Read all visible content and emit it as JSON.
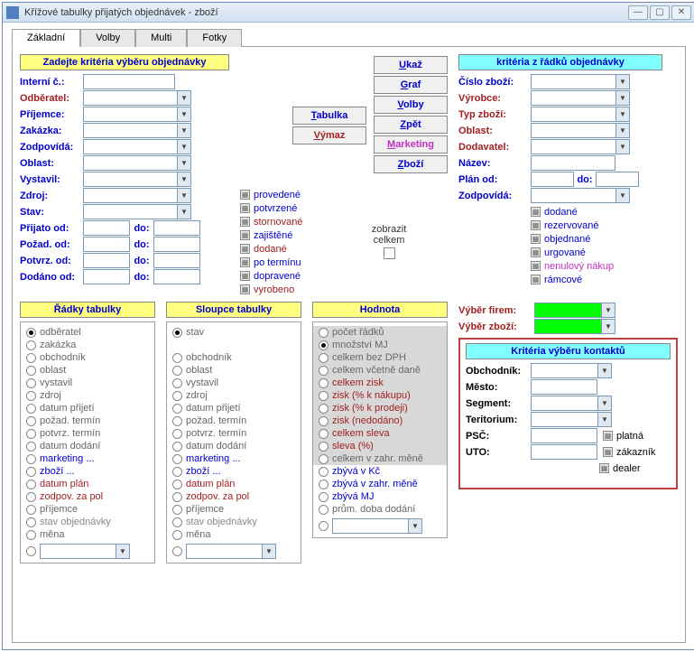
{
  "window": {
    "title": "Křížové tabulky přijatých objednávek - zboží"
  },
  "tabs": [
    "Základní",
    "Volby",
    "Multi",
    "Fotky"
  ],
  "hdr": {
    "criteria_obj": "Zadejte kritéria výběru objednávky",
    "criteria_row": "kritéria z řádků objednávky",
    "rows": "Řádky tabulky",
    "cols": "Sloupce tabulky",
    "val": "Hodnota",
    "kontakt": "Kritéria výběru kontaktů"
  },
  "left_fields": [
    {
      "l": "Interní č.:",
      "t": "inp"
    },
    {
      "l": "Odběratel:",
      "t": "cmb",
      "red": true
    },
    {
      "l": "Příjemce:",
      "t": "cmb"
    },
    {
      "l": "Zakázka:",
      "t": "cmb"
    },
    {
      "l": "Zodpovídá:",
      "t": "cmb"
    },
    {
      "l": "Oblast:",
      "t": "cmb"
    },
    {
      "l": "Vystavil:",
      "t": "cmb"
    },
    {
      "l": "Zdroj:",
      "t": "cmb"
    },
    {
      "l": "Stav:",
      "t": "cmb"
    }
  ],
  "left_dates": [
    {
      "l": "Přijato od:",
      "m": "do:"
    },
    {
      "l": "Požad. od:",
      "m": "do:"
    },
    {
      "l": "Potvrz. od:",
      "m": "do:"
    },
    {
      "l": "Dodáno od:",
      "m": "do:"
    }
  ],
  "buttons_col1": [
    {
      "u": "T",
      "r": "abulka"
    },
    {
      "u": "V",
      "r": "ýmaz",
      "cls": "btn-red"
    }
  ],
  "buttons_col2": [
    {
      "u": "U",
      "r": "kaž"
    },
    {
      "u": "G",
      "r": "raf"
    },
    {
      "u": "V",
      "r": "olby"
    },
    {
      "u": "Z",
      "r": "pět"
    },
    {
      "u": "M",
      "r": "arketing",
      "cls": "btn-mag"
    },
    {
      "u": "Z",
      "r": "boží"
    }
  ],
  "mid_checks": [
    {
      "l": "provedené",
      "c": "blue"
    },
    {
      "l": "potvrzené",
      "c": "blue"
    },
    {
      "l": "stornované",
      "c": "red"
    },
    {
      "l": "zajištěné",
      "c": "blue"
    },
    {
      "l": "dodané",
      "c": "red"
    },
    {
      "l": "po termínu",
      "c": "blue"
    },
    {
      "l": "dopravené",
      "c": "blue"
    },
    {
      "l": "vyrobeno",
      "c": "red"
    }
  ],
  "zobrazit": {
    "l1": "zobrazit",
    "l2": "celkem"
  },
  "right_fields": [
    {
      "l": "Číslo zboží:",
      "t": "cmb"
    },
    {
      "l": "Výrobce:",
      "t": "cmb",
      "red": true
    },
    {
      "l": "Typ zboží:",
      "t": "cmb",
      "red": true
    },
    {
      "l": "Oblast:",
      "t": "cmb",
      "red": true
    },
    {
      "l": "Dodavatel:",
      "t": "cmb",
      "red": true
    },
    {
      "l": "Název:",
      "t": "inp"
    },
    {
      "l": "Plán od:",
      "t": "date",
      "m": "do:"
    },
    {
      "l": "Zodpovídá:",
      "t": "cmb"
    }
  ],
  "right_checks": [
    {
      "l": "dodané",
      "c": "blue"
    },
    {
      "l": "rezervované",
      "c": "blue"
    },
    {
      "l": "objednané",
      "c": "blue"
    },
    {
      "l": "urgované",
      "c": "blue"
    },
    {
      "l": "nenulový nákup",
      "c": "mag"
    },
    {
      "l": "rámcové",
      "c": "blue"
    }
  ],
  "radio_rows": [
    {
      "l": "odběratel",
      "sel": true
    },
    {
      "l": "zakázka"
    },
    {
      "l": "obchodník"
    },
    {
      "l": "oblast"
    },
    {
      "l": "vystavil"
    },
    {
      "l": "zdroj"
    },
    {
      "l": "datum přijetí"
    },
    {
      "l": "požad. termín"
    },
    {
      "l": "potvrz. termín"
    },
    {
      "l": "datum dodání"
    },
    {
      "l": "marketing ...",
      "c": "blue"
    },
    {
      "l": "zboží ...",
      "c": "blue"
    },
    {
      "l": "datum plán",
      "c": "red"
    },
    {
      "l": "zodpov. za pol",
      "c": "red"
    },
    {
      "l": "příjemce"
    },
    {
      "l": "stav objednávky",
      "c": "grey"
    },
    {
      "l": "měna"
    }
  ],
  "radio_cols": [
    {
      "l": "stav",
      "sel": true
    },
    {
      "l": ""
    },
    {
      "l": "obchodník"
    },
    {
      "l": "oblast"
    },
    {
      "l": "vystavil"
    },
    {
      "l": "zdroj"
    },
    {
      "l": "datum přijetí"
    },
    {
      "l": "požad. termín"
    },
    {
      "l": "potvrz. termín"
    },
    {
      "l": "datum dodání"
    },
    {
      "l": "marketing ...",
      "c": "blue"
    },
    {
      "l": "zboží ...",
      "c": "blue"
    },
    {
      "l": "datum plán",
      "c": "red"
    },
    {
      "l": "zodpov. za pol",
      "c": "red"
    },
    {
      "l": "příjemce"
    },
    {
      "l": "stav objednávky",
      "c": "grey"
    },
    {
      "l": "měna"
    }
  ],
  "radio_val": [
    {
      "l": "počet řádků",
      "g": true
    },
    {
      "l": "množství MJ",
      "sel": true,
      "g": true
    },
    {
      "l": "celkem bez DPH",
      "g": true
    },
    {
      "l": "celkem včetně daně",
      "g": true
    },
    {
      "l": "celkem zisk",
      "c": "red",
      "g": true
    },
    {
      "l": "zisk (% k nákupu)",
      "c": "red",
      "g": true
    },
    {
      "l": "zisk (% k prodeji)",
      "c": "red",
      "g": true
    },
    {
      "l": "zisk (nedodáno)",
      "c": "red",
      "g": true
    },
    {
      "l": "celkem sleva",
      "c": "red",
      "g": true
    },
    {
      "l": "sleva (%)",
      "c": "red",
      "g": true
    },
    {
      "l": "celkem v zahr. měně",
      "g": true
    },
    {
      "l": "zbývá v Kč",
      "c": "blue"
    },
    {
      "l": "zbývá v zahr. měně",
      "c": "blue"
    },
    {
      "l": "zbývá MJ",
      "c": "blue"
    },
    {
      "l": "prům. doba dodání"
    }
  ],
  "vyber": {
    "firem": "Výběr firem:",
    "zbozi": "Výběr zboží:"
  },
  "kontakt_fields": [
    {
      "l": "Obchodník:",
      "t": "cmb"
    },
    {
      "l": "Město:",
      "t": "inp"
    },
    {
      "l": "Segment:",
      "t": "cmb"
    },
    {
      "l": "Teritorium:",
      "t": "cmb"
    },
    {
      "l": "PSČ:",
      "t": "inp",
      "chk": "platná"
    },
    {
      "l": "UTO:",
      "t": "inp",
      "chk": "zákazník"
    }
  ],
  "kontakt_extra_chk": "dealer"
}
